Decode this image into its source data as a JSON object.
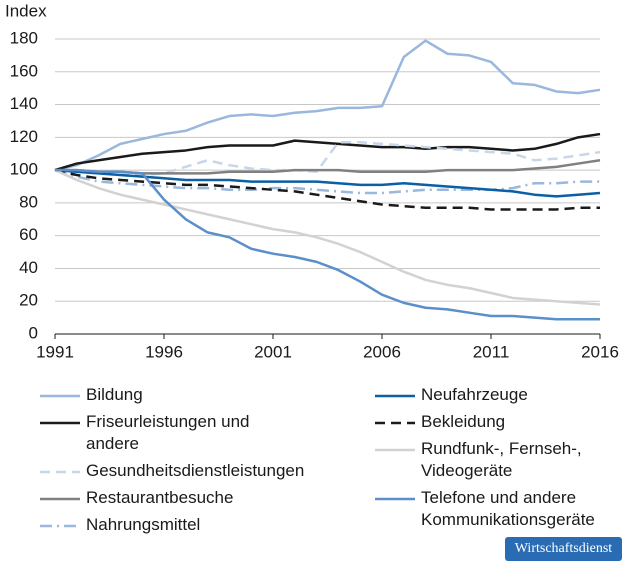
{
  "chart_data": {
    "type": "line",
    "y_label": "Index",
    "source": "Wirtschaftsdienst",
    "x": [
      1991,
      1992,
      1993,
      1994,
      1995,
      1996,
      1997,
      1998,
      1999,
      2000,
      2001,
      2002,
      2003,
      2004,
      2005,
      2006,
      2007,
      2008,
      2009,
      2010,
      2011,
      2012,
      2013,
      2014,
      2015,
      2016
    ],
    "xlim": [
      1991,
      2016
    ],
    "xticks": [
      1991,
      1996,
      2001,
      2006,
      2011,
      2016
    ],
    "ylim": [
      0,
      180
    ],
    "yticks": [
      0,
      20,
      40,
      60,
      80,
      100,
      120,
      140,
      160,
      180
    ],
    "grid": true,
    "series": [
      {
        "name": "Bildung",
        "color": "#9ab7dd",
        "dash": "solid",
        "values": [
          100,
          103,
          109,
          116,
          119,
          122,
          124,
          129,
          133,
          134,
          133,
          135,
          136,
          138,
          138,
          139,
          169,
          179,
          171,
          170,
          166,
          153,
          152,
          148,
          147,
          149
        ]
      },
      {
        "name": "Friseurleistungen und andere",
        "color": "#1a1a1a",
        "dash": "solid",
        "values": [
          100,
          104,
          106,
          108,
          110,
          111,
          112,
          114,
          115,
          115,
          115,
          118,
          117,
          116,
          115,
          114,
          114,
          113,
          114,
          114,
          113,
          112,
          113,
          116,
          120,
          122
        ]
      },
      {
        "name": "Gesundheitsdienstleistungen",
        "color": "#c8d6ea",
        "dash": "dashed",
        "values": [
          100,
          99,
          98,
          97,
          97,
          98,
          102,
          106,
          103,
          101,
          100,
          100,
          99,
          117,
          117,
          116,
          115,
          114,
          113,
          112,
          111,
          110,
          106,
          107,
          109,
          111
        ]
      },
      {
        "name": "Restaurantbesuche",
        "color": "#808080",
        "dash": "solid",
        "values": [
          100,
          100,
          99,
          99,
          98,
          98,
          98,
          98,
          99,
          99,
          99,
          100,
          100,
          100,
          99,
          99,
          99,
          99,
          100,
          100,
          100,
          100,
          101,
          102,
          104,
          106
        ]
      },
      {
        "name": "Nahrungsmittel",
        "color": "#9ab7dd",
        "dash": "dashdot",
        "values": [
          100,
          96,
          93,
          92,
          91,
          90,
          89,
          89,
          88,
          88,
          89,
          89,
          88,
          87,
          86,
          86,
          87,
          88,
          88,
          88,
          88,
          89,
          92,
          92,
          93,
          93
        ]
      },
      {
        "name": "Neufahrzeuge",
        "color": "#0b5fa5",
        "dash": "solid",
        "values": [
          100,
          99,
          98,
          97,
          96,
          95,
          94,
          94,
          94,
          93,
          93,
          93,
          93,
          92,
          91,
          91,
          92,
          91,
          90,
          89,
          88,
          87,
          85,
          84,
          85,
          86
        ]
      },
      {
        "name": "Bekleidung",
        "color": "#1a1a1a",
        "dash": "dashed",
        "values": [
          100,
          97,
          95,
          94,
          93,
          92,
          91,
          91,
          90,
          89,
          88,
          87,
          85,
          83,
          81,
          79,
          78,
          77,
          77,
          77,
          76,
          76,
          76,
          76,
          77,
          77
        ]
      },
      {
        "name": "Rundfunk-, Fernseh-, Videogeräte",
        "color": "#d2d2d2",
        "dash": "solid",
        "values": [
          100,
          94,
          89,
          85,
          82,
          79,
          76,
          73,
          70,
          67,
          64,
          62,
          59,
          55,
          50,
          44,
          38,
          33,
          30,
          28,
          25,
          22,
          21,
          20,
          19,
          18
        ]
      },
      {
        "name": "Telefone und andere Kommunikationsgeräte",
        "color": "#5b8fc9",
        "dash": "solid",
        "values": [
          100,
          100,
          99,
          99,
          98,
          82,
          70,
          62,
          59,
          52,
          49,
          47,
          44,
          39,
          32,
          24,
          19,
          16,
          15,
          13,
          11,
          11,
          10,
          9,
          9,
          9
        ]
      }
    ]
  }
}
